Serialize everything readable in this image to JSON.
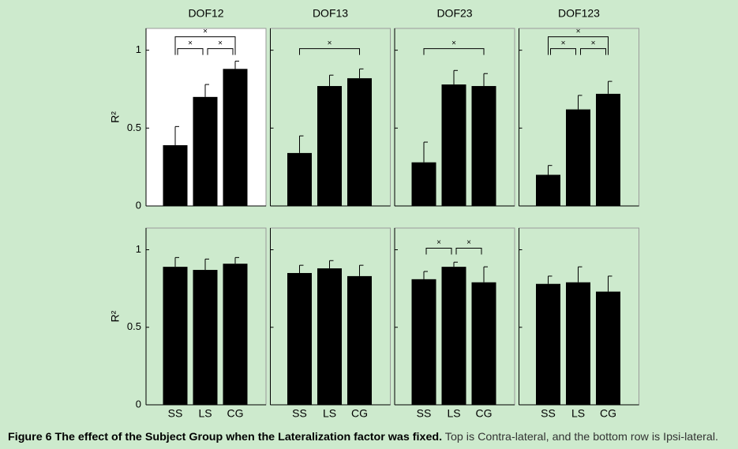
{
  "chart_data": [
    {
      "type": "bar",
      "title": "DOF12",
      "ylabel": "R²",
      "categories": [
        "SS",
        "LS",
        "CG"
      ],
      "values": [
        0.39,
        0.7,
        0.88
      ],
      "errors": [
        0.12,
        0.08,
        0.05
      ],
      "color": "#000000",
      "facecolor": "#ffffff",
      "ylim": [
        0,
        1.14
      ],
      "yticks": [
        0,
        0.5,
        1
      ],
      "show_yticklabels": true,
      "show_xticklabels": false,
      "brackets": [
        {
          "between": [
            "SS",
            "LS"
          ],
          "label": "×"
        },
        {
          "between": [
            "LS",
            "CG"
          ],
          "label": "×"
        },
        {
          "between": [
            "SS",
            "CG"
          ],
          "label": "×"
        }
      ]
    },
    {
      "type": "bar",
      "title": "DOF13",
      "categories": [
        "SS",
        "LS",
        "CG"
      ],
      "values": [
        0.34,
        0.77,
        0.82
      ],
      "errors": [
        0.11,
        0.07,
        0.06
      ],
      "color": "#000000",
      "facecolor": "#cdeacd",
      "ylim": [
        0,
        1.14
      ],
      "yticks": [
        0,
        0.5,
        1
      ],
      "show_yticklabels": false,
      "show_xticklabels": false,
      "brackets": [
        {
          "between": [
            "SS",
            "CG"
          ],
          "label": "×"
        }
      ]
    },
    {
      "type": "bar",
      "title": "DOF23",
      "categories": [
        "SS",
        "LS",
        "CG"
      ],
      "values": [
        0.28,
        0.78,
        0.77
      ],
      "errors": [
        0.13,
        0.09,
        0.08
      ],
      "color": "#000000",
      "facecolor": "#cdeacd",
      "ylim": [
        0,
        1.14
      ],
      "yticks": [
        0,
        0.5,
        1
      ],
      "show_yticklabels": false,
      "show_xticklabels": false,
      "brackets": [
        {
          "between": [
            "SS",
            "CG"
          ],
          "label": "×"
        }
      ]
    },
    {
      "type": "bar",
      "title": "DOF123",
      "categories": [
        "SS",
        "LS",
        "CG"
      ],
      "values": [
        0.2,
        0.62,
        0.72
      ],
      "errors": [
        0.06,
        0.09,
        0.08
      ],
      "color": "#000000",
      "facecolor": "#cdeacd",
      "ylim": [
        0,
        1.14
      ],
      "yticks": [
        0,
        0.5,
        1
      ],
      "show_yticklabels": false,
      "show_xticklabels": false,
      "brackets": [
        {
          "between": [
            "SS",
            "LS"
          ],
          "label": "×"
        },
        {
          "between": [
            "LS",
            "CG"
          ],
          "label": "×"
        },
        {
          "between": [
            "SS",
            "CG"
          ],
          "label": "×"
        }
      ]
    },
    {
      "type": "bar",
      "ylabel": "R²",
      "categories": [
        "SS",
        "LS",
        "CG"
      ],
      "values": [
        0.89,
        0.87,
        0.91
      ],
      "errors": [
        0.06,
        0.07,
        0.04
      ],
      "color": "#000000",
      "facecolor": "#cdeacd",
      "ylim": [
        0,
        1.14
      ],
      "yticks": [
        0,
        0.5,
        1
      ],
      "show_yticklabels": true,
      "show_xticklabels": true
    },
    {
      "type": "bar",
      "categories": [
        "SS",
        "LS",
        "CG"
      ],
      "values": [
        0.85,
        0.88,
        0.83
      ],
      "errors": [
        0.05,
        0.05,
        0.07
      ],
      "color": "#000000",
      "facecolor": "#cdeacd",
      "ylim": [
        0,
        1.14
      ],
      "yticks": [
        0,
        0.5,
        1
      ],
      "show_yticklabels": false,
      "show_xticklabels": true
    },
    {
      "type": "bar",
      "categories": [
        "SS",
        "LS",
        "CG"
      ],
      "values": [
        0.81,
        0.89,
        0.79
      ],
      "errors": [
        0.05,
        0.03,
        0.1
      ],
      "color": "#000000",
      "facecolor": "#cdeacd",
      "ylim": [
        0,
        1.14
      ],
      "yticks": [
        0,
        0.5,
        1
      ],
      "show_yticklabels": false,
      "show_xticklabels": true,
      "brackets": [
        {
          "between": [
            "SS",
            "LS"
          ],
          "label": "×"
        },
        {
          "between": [
            "LS",
            "CG"
          ],
          "label": "×"
        }
      ]
    },
    {
      "type": "bar",
      "categories": [
        "SS",
        "LS",
        "CG"
      ],
      "values": [
        0.78,
        0.79,
        0.73
      ],
      "errors": [
        0.05,
        0.1,
        0.1
      ],
      "color": "#000000",
      "facecolor": "#cdeacd",
      "ylim": [
        0,
        1.14
      ],
      "yticks": [
        0,
        0.5,
        1
      ],
      "show_yticklabels": false,
      "show_xticklabels": true
    }
  ],
  "caption": {
    "label": "Figure 6 The effect of the Subject Group when the Lateralization factor was fixed.",
    "text": " Top is Contra-lateral, and the bottom row is Ipsi-lateral."
  }
}
